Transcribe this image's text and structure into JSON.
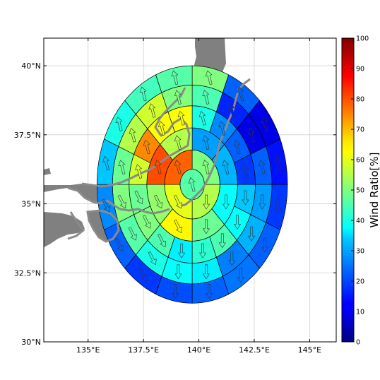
{
  "map": {
    "lon_range": [
      133.0,
      146.2
    ],
    "lat_range": [
      30.0,
      41.0
    ],
    "center": {
      "lon": 139.7,
      "lat": 35.7
    },
    "ring_radii_deg": [
      0.55,
      1.25,
      2.05,
      2.85,
      3.6,
      4.3
    ],
    "x_ticks": [
      {
        "value": 135.0,
        "label": "135°E"
      },
      {
        "value": 137.5,
        "label": "137.5°E"
      },
      {
        "value": 140.0,
        "label": "140°E"
      },
      {
        "value": 142.5,
        "label": "142.5°E"
      },
      {
        "value": 145.0,
        "label": "145°E"
      }
    ],
    "y_ticks": [
      {
        "value": 30.0,
        "label": "30°N"
      },
      {
        "value": 32.5,
        "label": "32.5°N"
      },
      {
        "value": 35.0,
        "label": "35°N"
      },
      {
        "value": 37.5,
        "label": "37.5°N"
      },
      {
        "value": 40.0,
        "label": "40°N"
      }
    ],
    "grid": true
  },
  "colorbar": {
    "label": "Wind Ratio[%]",
    "min": 0,
    "max": 100,
    "ticks": [
      "0",
      "10",
      "20",
      "30",
      "40",
      "50",
      "60",
      "70",
      "80",
      "90",
      "100"
    ],
    "colormap": "jet"
  },
  "chart_data": {
    "type": "heatmap",
    "description_rings": "values per ring (inner to outer), sectors listed clockwise starting at north",
    "rings": [
      {
        "sectors": 1,
        "values": [
          46
        ]
      },
      {
        "sectors": 4,
        "values": [
          50,
          55,
          60,
          78
        ]
      },
      {
        "sectors": 8,
        "values": [
          28,
          30,
          38,
          48,
          63,
          52,
          80,
          55
        ]
      },
      {
        "sectors": 16,
        "values": [
          40,
          26,
          22,
          18,
          32,
          38,
          45,
          42,
          36,
          45,
          50,
          48,
          58,
          74,
          62,
          62
        ]
      },
      {
        "sectors": 16,
        "values": [
          45,
          16,
          10,
          22,
          28,
          30,
          25,
          36,
          38,
          40,
          46,
          50,
          48,
          55,
          58,
          50
        ]
      },
      {
        "sectors": 16,
        "values": [
          50,
          22,
          10,
          14,
          18,
          22,
          24,
          22,
          20,
          18,
          22,
          26,
          32,
          40,
          44,
          46
        ]
      }
    ],
    "xlabel": "",
    "ylabel": ""
  }
}
